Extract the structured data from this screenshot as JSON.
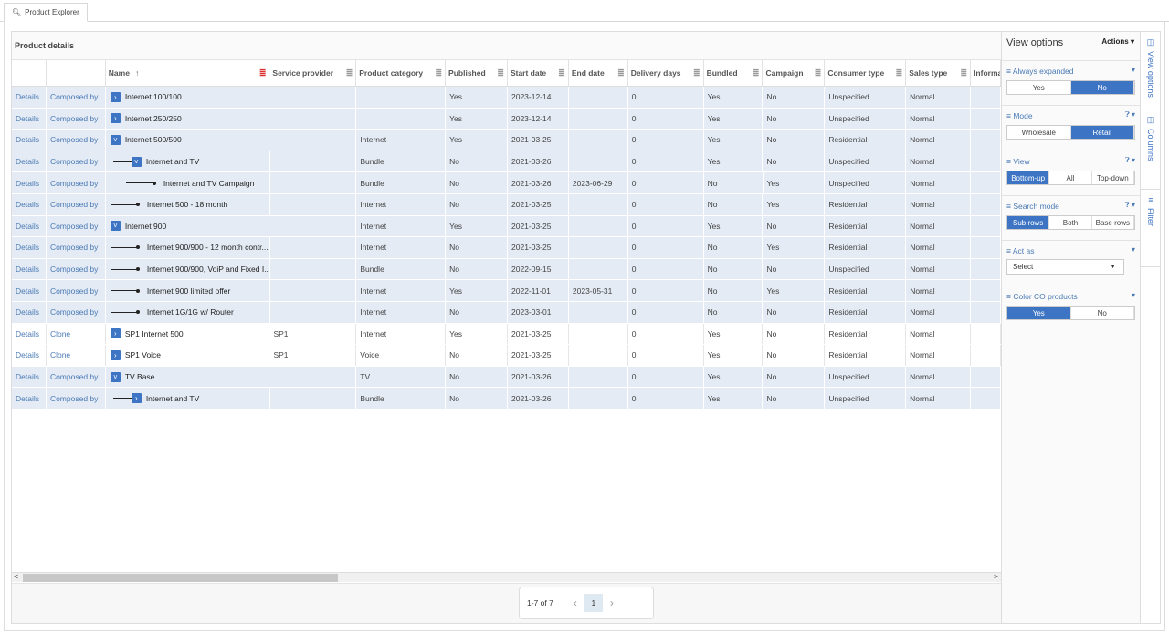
{
  "tab": {
    "label": "Product Explorer",
    "icon": "search-icon"
  },
  "grid": {
    "title": "Product details",
    "columns": [
      "",
      "",
      "Name",
      "Service provider",
      "Product category",
      "Published",
      "Start date",
      "End date",
      "Delivery days",
      "Bundled",
      "Campaign",
      "Consumer type",
      "Sales type",
      "Informa"
    ],
    "sort": {
      "column": "Name",
      "direction": "ascending"
    },
    "rows": [
      {
        "a": "Details",
        "b": "Composed by",
        "name": "Internet 100/100",
        "level": 0,
        "node": "collapsed",
        "shade": true,
        "sp": "",
        "cat": "",
        "pub": "Yes",
        "start": "2023-12-14",
        "end": "",
        "days": "0",
        "bundled": "Yes",
        "camp": "No",
        "cons": "Unspecified",
        "sales": "Normal"
      },
      {
        "a": "Details",
        "b": "Composed by",
        "name": "Internet 250/250",
        "level": 0,
        "node": "collapsed",
        "shade": true,
        "sp": "",
        "cat": "",
        "pub": "Yes",
        "start": "2023-12-14",
        "end": "",
        "days": "0",
        "bundled": "Yes",
        "camp": "No",
        "cons": "Unspecified",
        "sales": "Normal"
      },
      {
        "a": "Details",
        "b": "Composed by",
        "name": "Internet 500/500",
        "level": 0,
        "node": "expanded",
        "shade": true,
        "sp": "",
        "cat": "Internet",
        "pub": "Yes",
        "start": "2021-03-25",
        "end": "",
        "days": "0",
        "bundled": "Yes",
        "camp": "No",
        "cons": "Residential",
        "sales": "Normal"
      },
      {
        "a": "Details",
        "b": "Composed by",
        "name": "Internet and TV",
        "level": 1,
        "node": "expanded",
        "shade": true,
        "sp": "",
        "cat": "Bundle",
        "pub": "No",
        "start": "2021-03-26",
        "end": "",
        "days": "0",
        "bundled": "Yes",
        "camp": "No",
        "cons": "Unspecified",
        "sales": "Normal"
      },
      {
        "a": "Details",
        "b": "Composed by",
        "name": "Internet and TV Campaign",
        "level": 2,
        "node": "leaf",
        "shade": true,
        "sp": "",
        "cat": "Bundle",
        "pub": "No",
        "start": "2021-03-26",
        "end": "2023-06-29",
        "days": "0",
        "bundled": "No",
        "camp": "Yes",
        "cons": "Unspecified",
        "sales": "Normal"
      },
      {
        "a": "Details",
        "b": "Composed by",
        "name": "Internet 500 - 18 month",
        "level": 1,
        "node": "leaf",
        "shade": true,
        "sp": "",
        "cat": "Internet",
        "pub": "No",
        "start": "2021-03-25",
        "end": "",
        "days": "0",
        "bundled": "No",
        "camp": "Yes",
        "cons": "Residential",
        "sales": "Normal"
      },
      {
        "a": "Details",
        "b": "Composed by",
        "name": "Internet 900",
        "level": 0,
        "node": "expanded",
        "shade": true,
        "sp": "",
        "cat": "Internet",
        "pub": "Yes",
        "start": "2021-03-25",
        "end": "",
        "days": "0",
        "bundled": "Yes",
        "camp": "No",
        "cons": "Residential",
        "sales": "Normal"
      },
      {
        "a": "Details",
        "b": "Composed by",
        "name": "Internet 900/900 - 12 month contr...",
        "level": 1,
        "node": "leaf",
        "shade": true,
        "sp": "",
        "cat": "Internet",
        "pub": "No",
        "start": "2021-03-25",
        "end": "",
        "days": "0",
        "bundled": "No",
        "camp": "Yes",
        "cons": "Residential",
        "sales": "Normal"
      },
      {
        "a": "Details",
        "b": "Composed by",
        "name": "Internet 900/900, VoiP and Fixed I...",
        "level": 1,
        "node": "leaf",
        "shade": true,
        "sp": "",
        "cat": "Bundle",
        "pub": "No",
        "start": "2022-09-15",
        "end": "",
        "days": "0",
        "bundled": "No",
        "camp": "No",
        "cons": "Unspecified",
        "sales": "Normal"
      },
      {
        "a": "Details",
        "b": "Composed by",
        "name": "Internet 900 limited offer",
        "level": 1,
        "node": "leaf",
        "shade": true,
        "sp": "",
        "cat": "Internet",
        "pub": "Yes",
        "start": "2022-11-01",
        "end": "2023-05-31",
        "days": "0",
        "bundled": "No",
        "camp": "Yes",
        "cons": "Residential",
        "sales": "Normal"
      },
      {
        "a": "Details",
        "b": "Composed by",
        "name": "Internet 1G/1G w/ Router",
        "level": 1,
        "node": "leaf",
        "shade": true,
        "sp": "",
        "cat": "Internet",
        "pub": "No",
        "start": "2023-03-01",
        "end": "",
        "days": "0",
        "bundled": "No",
        "camp": "No",
        "cons": "Residential",
        "sales": "Normal"
      },
      {
        "a": "Details",
        "b": "Clone",
        "name": "SP1 Internet 500",
        "level": 0,
        "node": "collapsed",
        "shade": false,
        "sp": "SP1",
        "cat": "Internet",
        "pub": "Yes",
        "start": "2021-03-25",
        "end": "",
        "days": "0",
        "bundled": "Yes",
        "camp": "No",
        "cons": "Residential",
        "sales": "Normal"
      },
      {
        "a": "Details",
        "b": "Clone",
        "name": "SP1 Voice",
        "level": 0,
        "node": "collapsed",
        "shade": false,
        "sp": "SP1",
        "cat": "Voice",
        "pub": "No",
        "start": "2021-03-25",
        "end": "",
        "days": "0",
        "bundled": "Yes",
        "camp": "No",
        "cons": "Residential",
        "sales": "Normal"
      },
      {
        "a": "Details",
        "b": "Composed by",
        "name": "TV Base",
        "level": 0,
        "node": "expanded",
        "shade": true,
        "sp": "",
        "cat": "TV",
        "pub": "No",
        "start": "2021-03-26",
        "end": "",
        "days": "0",
        "bundled": "Yes",
        "camp": "No",
        "cons": "Unspecified",
        "sales": "Normal"
      },
      {
        "a": "Details",
        "b": "Composed by",
        "name": "Internet and TV",
        "level": 1,
        "node": "collapsed",
        "shade": true,
        "sp": "",
        "cat": "Bundle",
        "pub": "No",
        "start": "2021-03-26",
        "end": "",
        "days": "0",
        "bundled": "Yes",
        "camp": "No",
        "cons": "Unspecified",
        "sales": "Normal"
      }
    ]
  },
  "pager": {
    "summary": "1-7 of 7",
    "page": "1"
  },
  "view_options": {
    "title": "View options",
    "actions": "Actions",
    "sections": [
      {
        "label": "Always expanded",
        "help": false,
        "options": [
          "Yes",
          "No"
        ],
        "selected": "No"
      },
      {
        "label": "Mode",
        "help": true,
        "options": [
          "Wholesale",
          "Retail"
        ],
        "selected": "Retail"
      },
      {
        "label": "View",
        "help": true,
        "options": [
          "Bottom-up",
          "All",
          "Top-down"
        ],
        "selected": "Bottom-up"
      },
      {
        "label": "Search mode",
        "help": true,
        "options": [
          "Sub rows",
          "Both",
          "Base rows"
        ],
        "selected": "Sub rows"
      },
      {
        "label": "Act as",
        "help": false,
        "select": "Select"
      },
      {
        "label": "Color CO products",
        "help": false,
        "options": [
          "Yes",
          "No"
        ],
        "selected": "Yes"
      }
    ]
  },
  "rail": [
    "View options",
    "Columns",
    "Filter"
  ],
  "colors": {
    "accent": "#3d74c4",
    "link": "#4a7ab5",
    "row_shade": "#e4ebf4"
  }
}
